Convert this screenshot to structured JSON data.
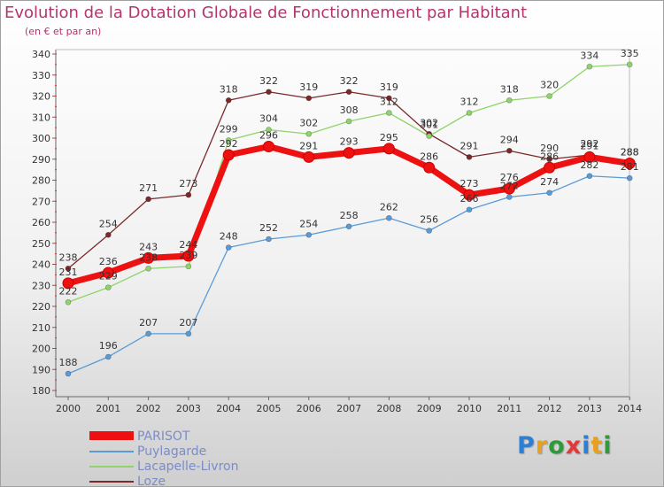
{
  "title": "Evolution de la Dotation Globale de Fonctionnement par Habitant",
  "subtitle": "(en € et par an)",
  "logo": {
    "text": "Proxiti",
    "letters": [
      "P",
      "r",
      "o",
      "x",
      "i",
      "t",
      "i"
    ],
    "colors": [
      "#2b7fd4",
      "#e8a020",
      "#2f9a3a",
      "#e03a3a",
      "#2b7fd4",
      "#e8a020",
      "#2f9a3a"
    ]
  },
  "chart_data": {
    "type": "line",
    "title": "Evolution de la Dotation Globale de Fonctionnement par Habitant",
    "subtitle": "(en € et par an)",
    "xlabel": "",
    "ylabel": "",
    "ylim": [
      180,
      340
    ],
    "yticks": [
      180,
      190,
      200,
      210,
      220,
      230,
      240,
      250,
      260,
      270,
      280,
      290,
      300,
      310,
      320,
      330,
      340
    ],
    "grid": false,
    "legend_position": "bottom-left",
    "x": [
      "2000",
      "2001",
      "2002",
      "2003",
      "2004",
      "2005",
      "2006",
      "2007",
      "2008",
      "2009",
      "2010",
      "2011",
      "2012",
      "2013",
      "2014"
    ],
    "series": [
      {
        "name": "PARISOT",
        "color": "#ee1111",
        "values": [
          231,
          236,
          243,
          244,
          292,
          296,
          291,
          293,
          295,
          286,
          273,
          276,
          286,
          291,
          288
        ]
      },
      {
        "name": "Puylagarde",
        "color": "#5b9bd5",
        "values": [
          188,
          196,
          207,
          207,
          248,
          252,
          254,
          258,
          262,
          256,
          266,
          272,
          274,
          282,
          281
        ]
      },
      {
        "name": "Lacapelle-Livron",
        "color": "#8fd36a",
        "values": [
          222,
          229,
          238,
          239,
          299,
          304,
          302,
          308,
          312,
          301,
          312,
          318,
          320,
          334,
          335
        ]
      },
      {
        "name": "Loze",
        "color": "#7a2a2a",
        "values": [
          238,
          254,
          271,
          273,
          318,
          322,
          319,
          322,
          319,
          302,
          291,
          294,
          290,
          292,
          288
        ]
      }
    ]
  }
}
